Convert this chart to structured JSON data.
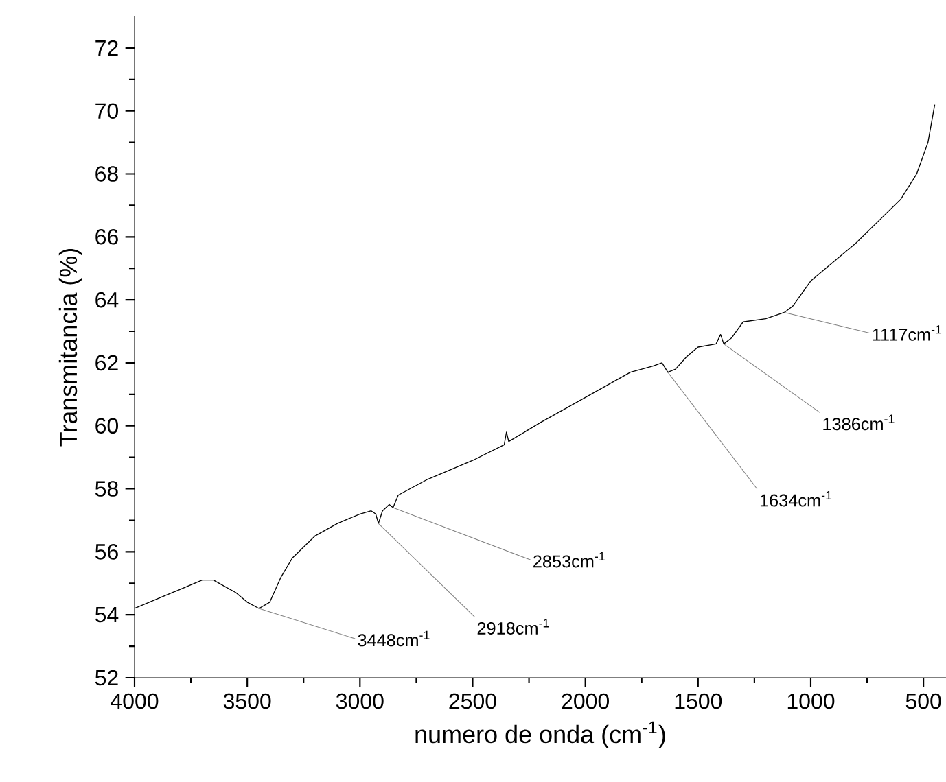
{
  "chart_data": {
    "type": "line",
    "xlabel": "numero de onda (cm$^{-1}$)",
    "ylabel": "Transmitancia (%)",
    "xlim": [
      4000,
      400
    ],
    "ylim": [
      52,
      73
    ],
    "xticks": [
      4000,
      3500,
      3000,
      2500,
      2000,
      1500,
      1000,
      500
    ],
    "yticks": [
      52,
      54,
      56,
      58,
      60,
      62,
      64,
      66,
      68,
      70,
      72
    ],
    "series": [
      {
        "color": "#000000",
        "x": [
          4000,
          3900,
          3800,
          3700,
          3650,
          3600,
          3550,
          3500,
          3448,
          3400,
          3350,
          3300,
          3200,
          3100,
          3000,
          2950,
          2930,
          2918,
          2900,
          2870,
          2853,
          2830,
          2700,
          2500,
          2360,
          2350,
          2340,
          2200,
          2000,
          1800,
          1700,
          1660,
          1634,
          1600,
          1550,
          1500,
          1420,
          1400,
          1386,
          1350,
          1300,
          1200,
          1117,
          1080,
          1050,
          1000,
          900,
          800,
          700,
          600,
          530,
          480,
          450
        ],
        "values": [
          54.2,
          54.5,
          54.8,
          55.1,
          55.1,
          54.9,
          54.7,
          54.4,
          54.2,
          54.4,
          55.2,
          55.8,
          56.5,
          56.9,
          57.2,
          57.3,
          57.2,
          56.9,
          57.3,
          57.5,
          57.4,
          57.8,
          58.3,
          58.9,
          59.4,
          59.8,
          59.5,
          60.1,
          60.9,
          61.7,
          61.9,
          62.0,
          61.7,
          61.8,
          62.2,
          62.5,
          62.6,
          62.9,
          62.6,
          62.8,
          63.3,
          63.4,
          63.6,
          63.8,
          64.1,
          64.6,
          65.2,
          65.8,
          66.5,
          67.2,
          68.0,
          69.0,
          70.2
        ]
      }
    ],
    "annotations": [
      {
        "text": "3448cm$^{-1}$",
        "x": 3448,
        "y": 54.2
      },
      {
        "text": "2918cm$^{-1}$",
        "x": 2918,
        "y": 56.9
      },
      {
        "text": "2853cm$^{-1}$",
        "x": 2853,
        "y": 57.4
      },
      {
        "text": "1634cm$^{-1}$",
        "x": 1634,
        "y": 61.7
      },
      {
        "text": "1386cm$^{-1}$",
        "x": 1386,
        "y": 62.6
      },
      {
        "text": "1117cm$^{-1}$",
        "x": 1117,
        "y": 63.6
      }
    ]
  }
}
